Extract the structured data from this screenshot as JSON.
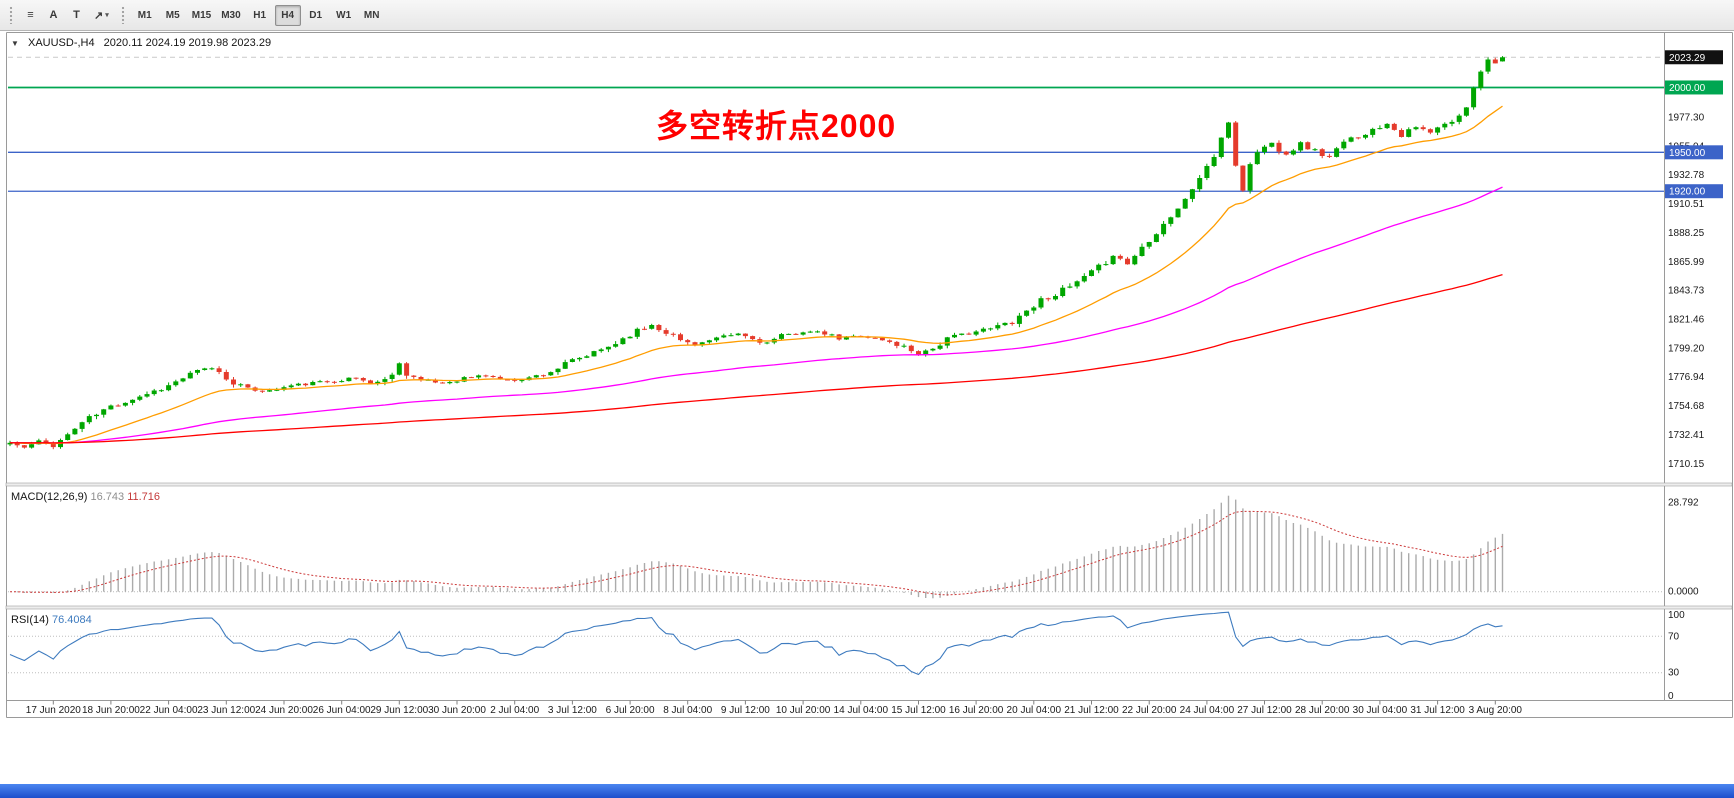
{
  "toolbar": {
    "tools": [
      {
        "name": "chart-list-tool",
        "label": "≡"
      },
      {
        "name": "text-tool",
        "label": "A"
      },
      {
        "name": "text-label-tool",
        "label": "T"
      },
      {
        "name": "shapes-dropdown",
        "label": "↗",
        "caret": "▾"
      }
    ],
    "timeframes": [
      "M1",
      "M5",
      "M15",
      "M30",
      "H1",
      "H4",
      "D1",
      "W1",
      "MN"
    ],
    "active_timeframe": "H4"
  },
  "chart": {
    "one_click_icon": "▼",
    "title_symbol": "XAUUSD-,H4",
    "title_ohlc": "2020.11 2024.19 2019.98 2023.29",
    "annotation": {
      "text": "多空转折点2000",
      "color": "#ff0000"
    },
    "current_price": "2023.29",
    "hlines": [
      {
        "price": 2000.0,
        "label": "2000.00",
        "color": "#00a651"
      },
      {
        "price": 1950.0,
        "label": "1950.00",
        "color": "#3c63c8"
      },
      {
        "price": 1920.0,
        "label": "1920.00",
        "color": "#3c63c8"
      }
    ],
    "price_ticks": [
      "2021.83",
      "1999.56",
      "1977.30",
      "1955.04",
      "1932.78",
      "1910.51",
      "1888.25",
      "1865.99",
      "1843.73",
      "1821.46",
      "1799.20",
      "1776.94",
      "1754.68",
      "1732.41",
      "1710.15"
    ],
    "colors": {
      "up": "#00a600",
      "down": "#e53b2c",
      "ma_fast": "#ff9d00",
      "ma_mid": "#ff00ff",
      "ma_slow": "#ff0000",
      "rsi_line": "#3e7bbf",
      "macd_hist": "#ababab",
      "macd_signal": "#cc3a3a",
      "hline_blue": "#3c63c8",
      "hline_green": "#00a651",
      "badge_current": "#111111"
    }
  },
  "chart_data": {
    "type": "candlestick",
    "symbol": "XAUUSD-",
    "timeframe": "H4",
    "candle_count": 208,
    "visible_price_range": [
      1695,
      2042
    ],
    "last_candle": {
      "o": 2020.11,
      "h": 2024.19,
      "l": 2019.98,
      "c": 2023.29
    },
    "close_path_anchors": [
      [
        0,
        1726
      ],
      [
        2,
        1722
      ],
      [
        4,
        1727
      ],
      [
        6,
        1724
      ],
      [
        8,
        1732
      ],
      [
        10,
        1742
      ],
      [
        12,
        1748
      ],
      [
        14,
        1754
      ],
      [
        16,
        1758
      ],
      [
        18,
        1762
      ],
      [
        20,
        1766
      ],
      [
        22,
        1770
      ],
      [
        24,
        1776
      ],
      [
        26,
        1781
      ],
      [
        28,
        1784
      ],
      [
        30,
        1776
      ],
      [
        33,
        1767
      ],
      [
        36,
        1766
      ],
      [
        39,
        1770
      ],
      [
        42,
        1772
      ],
      [
        45,
        1774
      ],
      [
        48,
        1776
      ],
      [
        50,
        1772
      ],
      [
        52,
        1774
      ],
      [
        54,
        1787
      ],
      [
        55,
        1780
      ],
      [
        57,
        1774
      ],
      [
        60,
        1772
      ],
      [
        63,
        1776
      ],
      [
        66,
        1778
      ],
      [
        69,
        1774
      ],
      [
        72,
        1776
      ],
      [
        75,
        1781
      ],
      [
        78,
        1789
      ],
      [
        81,
        1795
      ],
      [
        84,
        1803
      ],
      [
        86,
        1810
      ],
      [
        89,
        1817
      ],
      [
        91,
        1812
      ],
      [
        93,
        1805
      ],
      [
        95,
        1802
      ],
      [
        98,
        1806
      ],
      [
        101,
        1810
      ],
      [
        103,
        1806
      ],
      [
        105,
        1803
      ],
      [
        107,
        1808
      ],
      [
        110,
        1812
      ],
      [
        113,
        1810
      ],
      [
        115,
        1806
      ],
      [
        118,
        1809
      ],
      [
        121,
        1805
      ],
      [
        124,
        1800
      ],
      [
        126,
        1795
      ],
      [
        128,
        1799
      ],
      [
        130,
        1806
      ],
      [
        133,
        1811
      ],
      [
        136,
        1814
      ],
      [
        139,
        1820
      ],
      [
        141,
        1828
      ],
      [
        143,
        1836
      ],
      [
        145,
        1841
      ],
      [
        147,
        1846
      ],
      [
        149,
        1853
      ],
      [
        151,
        1861
      ],
      [
        153,
        1871
      ],
      [
        155,
        1864
      ],
      [
        157,
        1877
      ],
      [
        159,
        1889
      ],
      [
        161,
        1901
      ],
      [
        163,
        1913
      ],
      [
        165,
        1931
      ],
      [
        167,
        1947
      ],
      [
        168,
        1959
      ],
      [
        169,
        1974
      ],
      [
        170,
        1940
      ],
      [
        171,
        1921
      ],
      [
        172,
        1940
      ],
      [
        173,
        1951
      ],
      [
        175,
        1957
      ],
      [
        177,
        1949
      ],
      [
        179,
        1957
      ],
      [
        181,
        1951
      ],
      [
        183,
        1946
      ],
      [
        185,
        1957
      ],
      [
        187,
        1963
      ],
      [
        189,
        1967
      ],
      [
        191,
        1973
      ],
      [
        193,
        1963
      ],
      [
        195,
        1969
      ],
      [
        197,
        1965
      ],
      [
        199,
        1971
      ],
      [
        201,
        1977
      ],
      [
        202,
        1986
      ],
      [
        203,
        2001
      ],
      [
        204,
        2014
      ],
      [
        205,
        2021
      ],
      [
        206,
        2020.1
      ],
      [
        207,
        2023.29
      ]
    ],
    "time_labels": [
      "17 Jun 2020",
      "18 Jun 20:00",
      "22 Jun 04:00",
      "23 Jun 12:00",
      "24 Jun 20:00",
      "26 Jun 04:00",
      "29 Jun 12:00",
      "30 Jun 20:00",
      "2 Jul 04:00",
      "3 Jul 12:00",
      "6 Jul 20:00",
      "8 Jul 04:00",
      "9 Jul 12:00",
      "10 Jul 20:00",
      "14 Jul 04:00",
      "15 Jul 12:00",
      "16 Jul 20:00",
      "20 Jul 04:00",
      "21 Jul 12:00",
      "22 Jul 20:00",
      "24 Jul 04:00",
      "27 Jul 12:00",
      "28 Jul 20:00",
      "30 Jul 04:00",
      "31 Jul 12:00",
      "3 Aug 20:00"
    ],
    "moving_averages": [
      {
        "name": "ma-fast",
        "period": 20,
        "color": "#ff9d00"
      },
      {
        "name": "ma-mid",
        "period": 80,
        "color": "#ff00ff"
      },
      {
        "name": "ma-slow",
        "period": 200,
        "color": "#ff0000"
      }
    ]
  },
  "macd": {
    "title": "MACD(12,26,9)",
    "value_main": "16.743",
    "value_signal": "11.716",
    "params": [
      12,
      26,
      9
    ],
    "ticks": [
      "28.792",
      "0.0000"
    ]
  },
  "rsi": {
    "title": "RSI(14)",
    "value": "76.4084",
    "period": 14,
    "levels": [
      30,
      70
    ],
    "ticks": [
      "100",
      "70",
      "30",
      "0"
    ]
  }
}
